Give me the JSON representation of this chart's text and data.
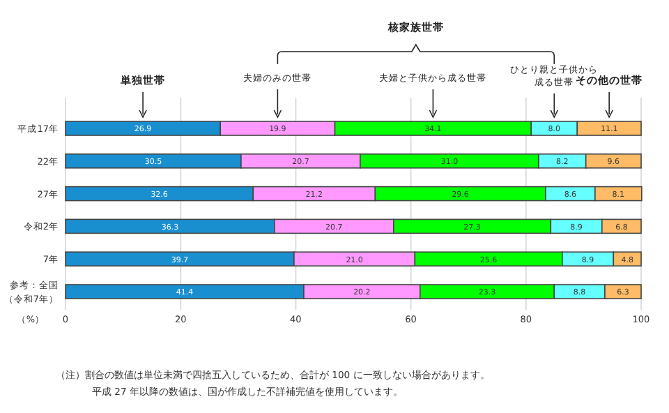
{
  "chart_data": {
    "type": "bar",
    "orientation": "horizontal",
    "stacked": true,
    "grid": "x",
    "categories": [
      "平成17年",
      "22年",
      "27年",
      "令和2年",
      "7年",
      "参考：全国（令和7年）"
    ],
    "xlabel": "（%）",
    "xlim": [
      0,
      100
    ],
    "xticks": [
      0,
      20,
      40,
      60,
      80,
      100
    ],
    "series": [
      {
        "name": "単独世帯",
        "color": "#1a8fd0",
        "values": [
          26.9,
          30.5,
          32.6,
          36.3,
          39.7,
          41.4
        ],
        "value_labels": [
          "26.9",
          "30.5",
          "32.6",
          "36.3",
          "39.7",
          "41.4"
        ]
      },
      {
        "name": "夫婦のみの世帯",
        "color": "#ff99ff",
        "values": [
          19.9,
          20.7,
          21.2,
          20.7,
          21.0,
          20.2
        ],
        "value_labels": [
          "19.9",
          "20.7",
          "21.2",
          "20.7",
          "21.0",
          "20.2"
        ]
      },
      {
        "name": "夫婦と子供から成る世帯",
        "color": "#00ff00",
        "values": [
          34.1,
          31.0,
          29.6,
          27.3,
          25.6,
          23.3
        ],
        "value_labels": [
          "34.1",
          "31.0",
          "29.6",
          "27.3",
          "25.6",
          "23.3"
        ]
      },
      {
        "name": "ひとり親と子供から成る世帯",
        "color": "#66ffff",
        "values": [
          8.0,
          8.2,
          8.6,
          8.9,
          8.9,
          8.8
        ],
        "value_labels": [
          "8.0",
          "8.2",
          "8.6",
          "8.9",
          "8.9",
          "8.8"
        ]
      },
      {
        "name": "その他の世帯",
        "color": "#ffbb66",
        "values": [
          11.1,
          9.6,
          8.1,
          6.8,
          4.8,
          6.3
        ],
        "value_labels": [
          "11.1",
          "9.6",
          "8.1",
          "6.8",
          "4.8",
          "6.3"
        ]
      }
    ],
    "annotations": [
      "核家族世帯",
      "（注）割合の数値は単位未満で四捨五入しているため、合計が 100 に一致しない場合があります。",
      "平成 27 年以降の数値は、国が作成した不詳補完値を使用しています。"
    ]
  }
}
